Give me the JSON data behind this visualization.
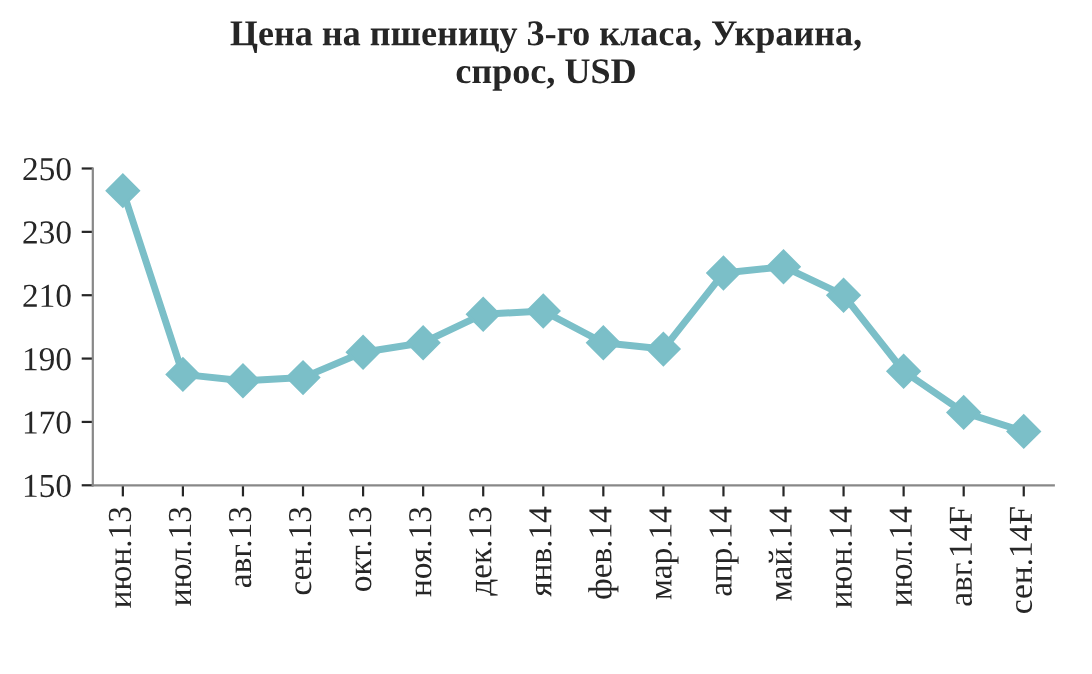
{
  "chart_data": {
    "type": "line",
    "title": "Цена на пшеницу 3-го класа, Украина,\nспрос, USD",
    "categories": [
      "июн.13",
      "июл.13",
      "авг.13",
      "сен.13",
      "окт.13",
      "ноя.13",
      "дек.13",
      "янв.14",
      "фев.14",
      "мар.14",
      "апр.14",
      "май.14",
      "июн.14",
      "июл.14",
      "авг.14F",
      "сен.14F"
    ],
    "series": [
      {
        "color": "#7bbfc8",
        "values": [
          243,
          185,
          183,
          184,
          192,
          195,
          204,
          205,
          195,
          193,
          217,
          219,
          210,
          186,
          173,
          167
        ]
      }
    ],
    "ylim": [
      150,
      250
    ],
    "yticks": [
      150,
      170,
      190,
      210,
      230,
      250
    ],
    "grid": false,
    "marker": "diamond",
    "line_style": "solid"
  }
}
